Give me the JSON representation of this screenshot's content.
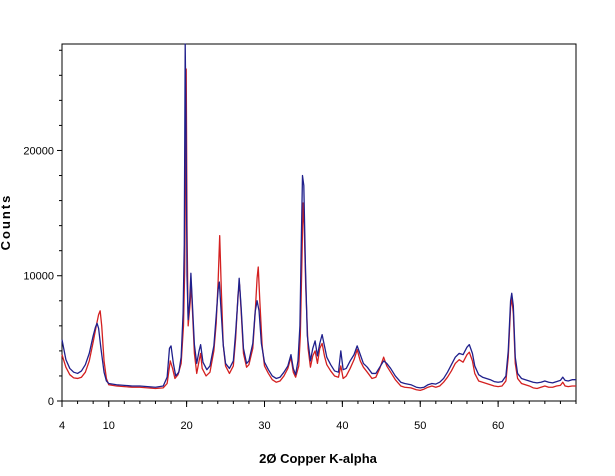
{
  "chart_data": {
    "type": "line",
    "title": "",
    "xlabel": "2Ø Copper K-alpha",
    "ylabel": "Counts",
    "xlim": [
      4,
      70
    ],
    "ylim": [
      0,
      28500
    ],
    "x_ticks": [
      4,
      10,
      20,
      30,
      40,
      50,
      60
    ],
    "y_ticks": [
      0,
      10000,
      20000
    ],
    "x_tick_labels": [
      "4",
      "10",
      "20",
      "30",
      "40",
      "50",
      "60"
    ],
    "y_tick_labels": [
      "0",
      "10000",
      "20000"
    ],
    "grid": false,
    "legend": "none",
    "series": [
      {
        "color": "#d42020",
        "points": [
          [
            4,
            3700
          ],
          [
            4.5,
            2700
          ],
          [
            5,
            2100
          ],
          [
            5.5,
            1850
          ],
          [
            6,
            1800
          ],
          [
            6.5,
            1900
          ],
          [
            7,
            2300
          ],
          [
            7.5,
            3200
          ],
          [
            8,
            4700
          ],
          [
            8.4,
            6000
          ],
          [
            8.7,
            6900
          ],
          [
            8.9,
            7200
          ],
          [
            9.1,
            6000
          ],
          [
            9.4,
            3200
          ],
          [
            9.7,
            1800
          ],
          [
            10,
            1300
          ],
          [
            11,
            1200
          ],
          [
            12,
            1150
          ],
          [
            13,
            1100
          ],
          [
            14,
            1100
          ],
          [
            15,
            1050
          ],
          [
            16,
            1000
          ],
          [
            17,
            1050
          ],
          [
            17.5,
            1400
          ],
          [
            17.9,
            3200
          ],
          [
            18.2,
            2600
          ],
          [
            18.5,
            1800
          ],
          [
            18.9,
            2100
          ],
          [
            19.3,
            3000
          ],
          [
            19.6,
            6000
          ],
          [
            19.75,
            10300
          ],
          [
            19.85,
            17500
          ],
          [
            19.95,
            26500
          ],
          [
            20.05,
            14000
          ],
          [
            20.2,
            6000
          ],
          [
            20.45,
            7800
          ],
          [
            20.6,
            9300
          ],
          [
            20.75,
            7200
          ],
          [
            21,
            3800
          ],
          [
            21.3,
            2200
          ],
          [
            21.6,
            3200
          ],
          [
            21.8,
            3800
          ],
          [
            22,
            2600
          ],
          [
            22.5,
            2000
          ],
          [
            23,
            2300
          ],
          [
            23.5,
            4000
          ],
          [
            23.8,
            6200
          ],
          [
            24.05,
            9600
          ],
          [
            24.25,
            13200
          ],
          [
            24.45,
            9000
          ],
          [
            24.7,
            4500
          ],
          [
            25,
            2800
          ],
          [
            25.5,
            2200
          ],
          [
            26,
            2800
          ],
          [
            26.3,
            5000
          ],
          [
            26.6,
            8500
          ],
          [
            26.8,
            9300
          ],
          [
            27,
            7200
          ],
          [
            27.3,
            3800
          ],
          [
            27.7,
            2700
          ],
          [
            28,
            2900
          ],
          [
            28.5,
            4200
          ],
          [
            28.8,
            7000
          ],
          [
            29.05,
            9800
          ],
          [
            29.2,
            10700
          ],
          [
            29.4,
            8000
          ],
          [
            29.7,
            4400
          ],
          [
            30,
            2800
          ],
          [
            30.5,
            2200
          ],
          [
            31,
            1700
          ],
          [
            31.5,
            1500
          ],
          [
            32,
            1600
          ],
          [
            32.5,
            2000
          ],
          [
            33,
            2600
          ],
          [
            33.4,
            3500
          ],
          [
            33.7,
            2300
          ],
          [
            34,
            1900
          ],
          [
            34.4,
            2800
          ],
          [
            34.6,
            5200
          ],
          [
            34.8,
            11000
          ],
          [
            34.95,
            15800
          ],
          [
            35.1,
            14000
          ],
          [
            35.3,
            9000
          ],
          [
            35.6,
            4200
          ],
          [
            35.9,
            2700
          ],
          [
            36.2,
            3600
          ],
          [
            36.5,
            4000
          ],
          [
            36.8,
            3000
          ],
          [
            37.1,
            4200
          ],
          [
            37.4,
            4600
          ],
          [
            37.7,
            3600
          ],
          [
            38,
            2900
          ],
          [
            38.5,
            2400
          ],
          [
            39,
            2000
          ],
          [
            39.5,
            1900
          ],
          [
            39.8,
            2800
          ],
          [
            40.1,
            1800
          ],
          [
            40.5,
            2000
          ],
          [
            41,
            2600
          ],
          [
            41.5,
            3300
          ],
          [
            41.9,
            4100
          ],
          [
            42.3,
            3200
          ],
          [
            42.7,
            2700
          ],
          [
            43.2,
            2300
          ],
          [
            43.8,
            1800
          ],
          [
            44.3,
            1900
          ],
          [
            44.8,
            2600
          ],
          [
            45.3,
            3500
          ],
          [
            45.7,
            2800
          ],
          [
            46.2,
            2300
          ],
          [
            46.8,
            1700
          ],
          [
            47.5,
            1200
          ],
          [
            48,
            1100
          ],
          [
            48.8,
            1050
          ],
          [
            49.5,
            900
          ],
          [
            50,
            850
          ],
          [
            50.5,
            950
          ],
          [
            51,
            1100
          ],
          [
            51.5,
            1200
          ],
          [
            52,
            1100
          ],
          [
            52.5,
            1200
          ],
          [
            53,
            1500
          ],
          [
            53.5,
            1900
          ],
          [
            54,
            2400
          ],
          [
            54.5,
            3000
          ],
          [
            55,
            3300
          ],
          [
            55.5,
            3100
          ],
          [
            56,
            3700
          ],
          [
            56.3,
            3900
          ],
          [
            56.7,
            3200
          ],
          [
            57,
            2200
          ],
          [
            57.5,
            1600
          ],
          [
            58,
            1500
          ],
          [
            58.5,
            1400
          ],
          [
            59,
            1300
          ],
          [
            59.5,
            1200
          ],
          [
            60,
            1150
          ],
          [
            60.5,
            1200
          ],
          [
            61,
            1600
          ],
          [
            61.3,
            3500
          ],
          [
            61.6,
            7500
          ],
          [
            61.75,
            8200
          ],
          [
            61.95,
            7000
          ],
          [
            62.2,
            3000
          ],
          [
            62.5,
            1800
          ],
          [
            63,
            1400
          ],
          [
            63.5,
            1300
          ],
          [
            64,
            1200
          ],
          [
            64.5,
            1050
          ],
          [
            65,
            1000
          ],
          [
            65.5,
            1100
          ],
          [
            66,
            1200
          ],
          [
            66.5,
            1100
          ],
          [
            67,
            1100
          ],
          [
            67.5,
            1200
          ],
          [
            68,
            1250
          ],
          [
            68.3,
            1500
          ],
          [
            68.6,
            1200
          ],
          [
            69,
            1150
          ],
          [
            69.5,
            1200
          ],
          [
            70,
            1200
          ]
        ]
      },
      {
        "color": "#20208c",
        "points": [
          [
            4,
            4900
          ],
          [
            4.5,
            3300
          ],
          [
            5,
            2600
          ],
          [
            5.5,
            2300
          ],
          [
            6,
            2200
          ],
          [
            6.5,
            2400
          ],
          [
            7,
            2900
          ],
          [
            7.5,
            3800
          ],
          [
            8,
            5200
          ],
          [
            8.3,
            5900
          ],
          [
            8.5,
            6200
          ],
          [
            8.7,
            5800
          ],
          [
            9,
            4200
          ],
          [
            9.4,
            2300
          ],
          [
            9.7,
            1600
          ],
          [
            10,
            1400
          ],
          [
            11,
            1300
          ],
          [
            12,
            1250
          ],
          [
            13,
            1200
          ],
          [
            14,
            1200
          ],
          [
            15,
            1150
          ],
          [
            16,
            1100
          ],
          [
            17,
            1200
          ],
          [
            17.5,
            1900
          ],
          [
            17.8,
            4200
          ],
          [
            18,
            4400
          ],
          [
            18.3,
            3000
          ],
          [
            18.6,
            2000
          ],
          [
            19,
            2300
          ],
          [
            19.3,
            3500
          ],
          [
            19.55,
            7000
          ],
          [
            19.7,
            12500
          ],
          [
            19.82,
            28500
          ],
          [
            19.92,
            22800
          ],
          [
            20.05,
            10000
          ],
          [
            20.2,
            6500
          ],
          [
            20.4,
            8000
          ],
          [
            20.55,
            10200
          ],
          [
            20.7,
            8300
          ],
          [
            21,
            4500
          ],
          [
            21.3,
            3000
          ],
          [
            21.6,
            4000
          ],
          [
            21.8,
            4500
          ],
          [
            22.1,
            3100
          ],
          [
            22.6,
            2500
          ],
          [
            23,
            2800
          ],
          [
            23.5,
            4400
          ],
          [
            23.8,
            6800
          ],
          [
            24.05,
            8900
          ],
          [
            24.2,
            9500
          ],
          [
            24.4,
            7500
          ],
          [
            24.7,
            4500
          ],
          [
            25,
            3000
          ],
          [
            25.5,
            2600
          ],
          [
            26,
            3200
          ],
          [
            26.3,
            5500
          ],
          [
            26.55,
            7800
          ],
          [
            26.75,
            9800
          ],
          [
            27,
            7500
          ],
          [
            27.3,
            4200
          ],
          [
            27.7,
            3000
          ],
          [
            28,
            3200
          ],
          [
            28.5,
            4600
          ],
          [
            28.8,
            7100
          ],
          [
            29.05,
            8000
          ],
          [
            29.3,
            7200
          ],
          [
            29.6,
            4600
          ],
          [
            30,
            3100
          ],
          [
            30.5,
            2500
          ],
          [
            31,
            2000
          ],
          [
            31.5,
            1800
          ],
          [
            32,
            1900
          ],
          [
            32.5,
            2300
          ],
          [
            33,
            2800
          ],
          [
            33.4,
            3700
          ],
          [
            33.7,
            2600
          ],
          [
            34,
            2100
          ],
          [
            34.3,
            3200
          ],
          [
            34.55,
            6000
          ],
          [
            34.75,
            13500
          ],
          [
            34.88,
            18000
          ],
          [
            35.05,
            17200
          ],
          [
            35.25,
            11000
          ],
          [
            35.5,
            5200
          ],
          [
            35.9,
            3200
          ],
          [
            36.2,
            4200
          ],
          [
            36.5,
            4800
          ],
          [
            36.8,
            3600
          ],
          [
            37.1,
            4600
          ],
          [
            37.4,
            5300
          ],
          [
            37.7,
            4400
          ],
          [
            38,
            3500
          ],
          [
            38.5,
            2900
          ],
          [
            39,
            2400
          ],
          [
            39.5,
            2300
          ],
          [
            39.8,
            4000
          ],
          [
            40.1,
            2500
          ],
          [
            40.5,
            2600
          ],
          [
            41,
            3200
          ],
          [
            41.5,
            3700
          ],
          [
            41.9,
            4400
          ],
          [
            42.3,
            3700
          ],
          [
            42.7,
            3000
          ],
          [
            43.2,
            2700
          ],
          [
            43.8,
            2200
          ],
          [
            44.3,
            2200
          ],
          [
            44.8,
            2700
          ],
          [
            45.3,
            3200
          ],
          [
            45.7,
            3000
          ],
          [
            46.2,
            2600
          ],
          [
            46.8,
            2000
          ],
          [
            47.5,
            1500
          ],
          [
            48,
            1400
          ],
          [
            48.8,
            1300
          ],
          [
            49.5,
            1100
          ],
          [
            50,
            1050
          ],
          [
            50.5,
            1100
          ],
          [
            51,
            1300
          ],
          [
            51.5,
            1400
          ],
          [
            52,
            1350
          ],
          [
            52.5,
            1500
          ],
          [
            53,
            1800
          ],
          [
            53.5,
            2300
          ],
          [
            54,
            2900
          ],
          [
            54.5,
            3500
          ],
          [
            55,
            3800
          ],
          [
            55.5,
            3700
          ],
          [
            56,
            4300
          ],
          [
            56.3,
            4500
          ],
          [
            56.7,
            3800
          ],
          [
            57,
            2800
          ],
          [
            57.5,
            2100
          ],
          [
            58,
            1900
          ],
          [
            58.5,
            1800
          ],
          [
            59,
            1700
          ],
          [
            59.5,
            1550
          ],
          [
            60,
            1500
          ],
          [
            60.5,
            1550
          ],
          [
            61,
            2000
          ],
          [
            61.3,
            4000
          ],
          [
            61.6,
            8000
          ],
          [
            61.75,
            8600
          ],
          [
            61.95,
            7600
          ],
          [
            62.2,
            3500
          ],
          [
            62.5,
            2200
          ],
          [
            63,
            1800
          ],
          [
            63.5,
            1700
          ],
          [
            64,
            1600
          ],
          [
            64.5,
            1500
          ],
          [
            65,
            1450
          ],
          [
            65.5,
            1500
          ],
          [
            66,
            1600
          ],
          [
            66.5,
            1500
          ],
          [
            67,
            1450
          ],
          [
            67.5,
            1550
          ],
          [
            68,
            1650
          ],
          [
            68.3,
            1900
          ],
          [
            68.6,
            1650
          ],
          [
            69,
            1600
          ],
          [
            69.5,
            1700
          ],
          [
            70,
            1700
          ]
        ]
      }
    ]
  }
}
